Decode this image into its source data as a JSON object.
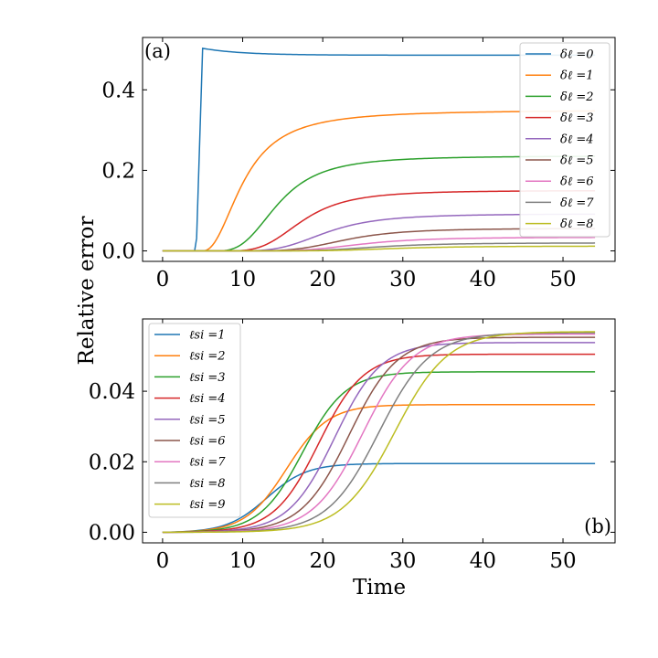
{
  "figure": {
    "ylabel": "Relative error",
    "xlabel": "Time"
  },
  "chart_data": [
    {
      "type": "line",
      "panel_label": "(a)",
      "xlim": [
        -2.5,
        56.5
      ],
      "ylim": [
        -0.026,
        0.53
      ],
      "xticks": [
        0,
        10,
        20,
        30,
        40,
        50
      ],
      "xtick_labels": [
        "0",
        "10",
        "20",
        "30",
        "40",
        "50"
      ],
      "yticks": [
        0.0,
        0.2,
        0.4
      ],
      "ytick_labels": [
        "0.0",
        "0.2",
        "0.4"
      ],
      "legend_position": "top-right",
      "series": [
        {
          "name": "δℓ =0",
          "color": "#1f77b4",
          "plateau": 0.486,
          "curve": "jump",
          "t0": 4.2,
          "t1": 5.0,
          "peak": 0.503,
          "decay": 5
        },
        {
          "name": "δℓ =1",
          "color": "#ff7f0e",
          "plateau": 0.35,
          "curve": "hill",
          "t0": 5.0,
          "tau": 5.2,
          "n": 2.2
        },
        {
          "name": "δℓ =2",
          "color": "#2ca02c",
          "plateau": 0.236,
          "curve": "hill",
          "t0": 6.5,
          "tau": 8.0,
          "n": 3.0
        },
        {
          "name": "δℓ =3",
          "color": "#d62728",
          "plateau": 0.15,
          "curve": "hill",
          "t0": 7.5,
          "tau": 10.0,
          "n": 3.5
        },
        {
          "name": "δℓ =4",
          "color": "#9467bd",
          "plateau": 0.092,
          "curve": "hill",
          "t0": 8.5,
          "tau": 12.0,
          "n": 3.6
        },
        {
          "name": "δℓ =5",
          "color": "#8c564b",
          "plateau": 0.056,
          "curve": "hill",
          "t0": 9.5,
          "tau": 13.5,
          "n": 3.8
        },
        {
          "name": "δℓ =6",
          "color": "#e377c2",
          "plateau": 0.034,
          "curve": "hill",
          "t0": 10.0,
          "tau": 15.0,
          "n": 3.8
        },
        {
          "name": "δℓ =7",
          "color": "#7f7f7f",
          "plateau": 0.02,
          "curve": "hill",
          "t0": 11.0,
          "tau": 16.0,
          "n": 3.8
        },
        {
          "name": "δℓ =8",
          "color": "#bcbd22",
          "plateau": 0.012,
          "curve": "hill",
          "t0": 12.0,
          "tau": 17.0,
          "n": 3.8
        }
      ]
    },
    {
      "type": "line",
      "panel_label": "(b)",
      "xlim": [
        -2.5,
        56.5
      ],
      "ylim": [
        -0.003,
        0.0605
      ],
      "xticks": [
        0,
        10,
        20,
        30,
        40,
        50
      ],
      "xtick_labels": [
        "0",
        "10",
        "20",
        "30",
        "40",
        "50"
      ],
      "yticks": [
        0.0,
        0.02,
        0.04
      ],
      "ytick_labels": [
        "0.00",
        "0.02",
        "0.04"
      ],
      "legend_position": "top-left",
      "series": [
        {
          "name": "ℓsi =1",
          "color": "#1f77b4",
          "plateau": 0.0195,
          "curve": "sigmoid",
          "t_mid": 13.0,
          "width": 2.5
        },
        {
          "name": "ℓsi =2",
          "color": "#ff7f0e",
          "plateau": 0.0362,
          "curve": "sigmoid",
          "t_mid": 15.5,
          "width": 2.6
        },
        {
          "name": "ℓsi =3",
          "color": "#2ca02c",
          "plateau": 0.0455,
          "curve": "sigmoid",
          "t_mid": 17.5,
          "width": 2.7
        },
        {
          "name": "ℓsi =4",
          "color": "#d62728",
          "plateau": 0.0505,
          "curve": "sigmoid",
          "t_mid": 19.5,
          "width": 2.8
        },
        {
          "name": "ℓsi =5",
          "color": "#9467bd",
          "plateau": 0.0538,
          "curve": "sigmoid",
          "t_mid": 21.5,
          "width": 2.9
        },
        {
          "name": "ℓsi =6",
          "color": "#8c564b",
          "plateau": 0.0553,
          "curve": "sigmoid",
          "t_mid": 23.3,
          "width": 3.0
        },
        {
          "name": "ℓsi =7",
          "color": "#e377c2",
          "plateau": 0.0562,
          "curve": "sigmoid",
          "t_mid": 25.0,
          "width": 3.1
        },
        {
          "name": "ℓsi =8",
          "color": "#7f7f7f",
          "plateau": 0.0566,
          "curve": "sigmoid",
          "t_mid": 27.0,
          "width": 3.2
        },
        {
          "name": "ℓsi =9",
          "color": "#bcbd22",
          "plateau": 0.0569,
          "curve": "sigmoid",
          "t_mid": 29.0,
          "width": 3.3
        }
      ]
    }
  ]
}
